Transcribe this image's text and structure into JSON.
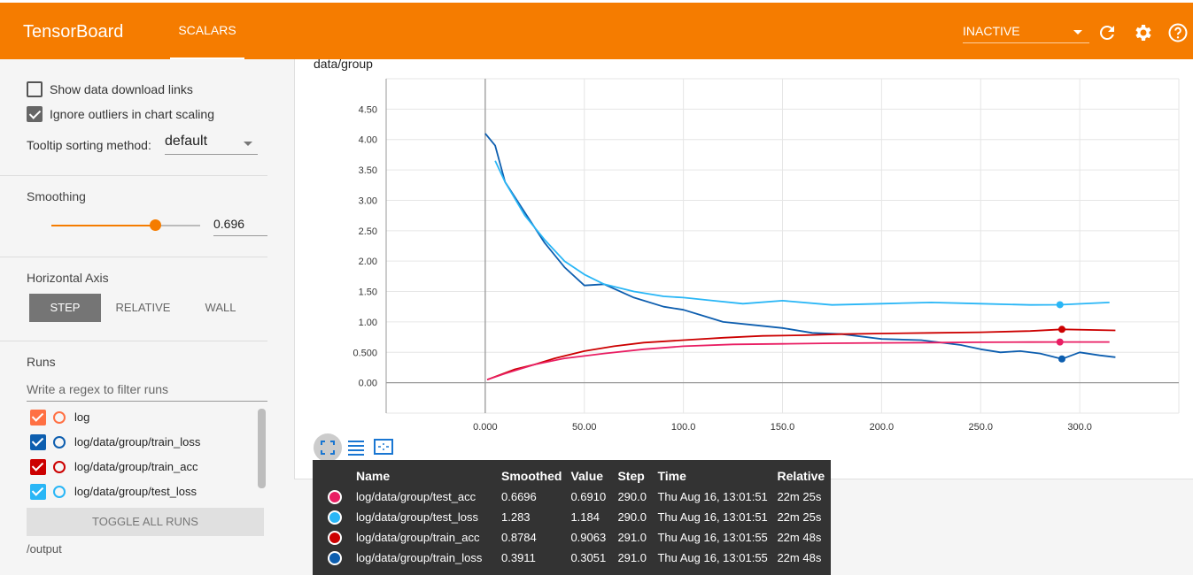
{
  "header": {
    "brand": "TensorBoard",
    "tab": "SCALARS",
    "status": "INACTIVE"
  },
  "sidebar": {
    "show_download": "Show data download links",
    "ignore_outliers": "Ignore outliers in chart scaling",
    "tooltip_sort_label": "Tooltip sorting method:",
    "tooltip_sort_value": "default",
    "smoothing_title": "Smoothing",
    "smoothing_value": "0.696",
    "smoothing_fraction": 0.696,
    "horizontal_axis_title": "Horizontal Axis",
    "axis_options": [
      "STEP",
      "RELATIVE",
      "WALL"
    ],
    "runs_title": "Runs",
    "filter_placeholder": "Write a regex to filter runs",
    "runs": [
      {
        "name": "log",
        "color": "#ff7043"
      },
      {
        "name": "log/data/group/train_loss",
        "color": "#0d5eaf"
      },
      {
        "name": "log/data/group/train_acc",
        "color": "#cc0000"
      },
      {
        "name": "log/data/group/test_loss",
        "color": "#29b6f6"
      }
    ],
    "toggle_all": "TOGGLE ALL RUNS",
    "output": "/output"
  },
  "chart_title": "data/group",
  "chart_data": {
    "type": "line",
    "xlabel": "",
    "ylabel": "",
    "xlim": [
      -50,
      350
    ],
    "ylim": [
      -0.5,
      5.0
    ],
    "x_ticks": [
      "0.000",
      "50.00",
      "100.0",
      "150.0",
      "200.0",
      "250.0",
      "300.0"
    ],
    "y_ticks": [
      "0.00",
      "0.500",
      "1.00",
      "1.50",
      "2.00",
      "2.50",
      "3.00",
      "3.50",
      "4.00",
      "4.50"
    ],
    "grid": true,
    "series": [
      {
        "name": "log/data/group/train_loss",
        "color": "#0d5eaf",
        "x": [
          0,
          5,
          10,
          20,
          30,
          40,
          50,
          60,
          75,
          90,
          100,
          110,
          120,
          135,
          150,
          165,
          180,
          200,
          220,
          240,
          250,
          260,
          270,
          280,
          291,
          300,
          310,
          318
        ],
        "y": [
          4.1,
          3.9,
          3.3,
          2.8,
          2.3,
          1.9,
          1.6,
          1.62,
          1.4,
          1.25,
          1.2,
          1.1,
          1.0,
          0.95,
          0.9,
          0.82,
          0.8,
          0.72,
          0.7,
          0.62,
          0.55,
          0.5,
          0.52,
          0.48,
          0.3911,
          0.5,
          0.45,
          0.42
        ]
      },
      {
        "name": "log/data/group/test_loss",
        "color": "#29b6f6",
        "x": [
          5,
          10,
          20,
          30,
          40,
          50,
          60,
          75,
          90,
          100,
          115,
          130,
          150,
          175,
          200,
          225,
          250,
          275,
          290,
          315
        ],
        "y": [
          3.65,
          3.3,
          2.75,
          2.35,
          2.0,
          1.78,
          1.62,
          1.5,
          1.42,
          1.4,
          1.35,
          1.3,
          1.35,
          1.28,
          1.3,
          1.32,
          1.3,
          1.28,
          1.283,
          1.32
        ]
      },
      {
        "name": "log/data/group/train_acc",
        "color": "#cc0000",
        "x": [
          1,
          5,
          15,
          25,
          35,
          50,
          65,
          80,
          100,
          120,
          140,
          160,
          180,
          200,
          225,
          250,
          275,
          291,
          318
        ],
        "y": [
          0.05,
          0.1,
          0.22,
          0.3,
          0.4,
          0.52,
          0.6,
          0.66,
          0.7,
          0.74,
          0.77,
          0.78,
          0.8,
          0.81,
          0.82,
          0.83,
          0.85,
          0.8784,
          0.86
        ]
      },
      {
        "name": "log/data/group/test_acc",
        "color": "#e91e63",
        "x": [
          1,
          10,
          25,
          40,
          60,
          80,
          100,
          125,
          150,
          175,
          200,
          225,
          250,
          275,
          290,
          315
        ],
        "y": [
          0.05,
          0.15,
          0.3,
          0.4,
          0.48,
          0.55,
          0.6,
          0.63,
          0.64,
          0.65,
          0.655,
          0.66,
          0.665,
          0.668,
          0.6696,
          0.67
        ]
      }
    ]
  },
  "tooltip": {
    "headers": [
      "Name",
      "Smoothed",
      "Value",
      "Step",
      "Time",
      "Relative"
    ],
    "rows": [
      {
        "color": "#e91e63",
        "name": "log/data/group/test_acc",
        "smoothed": "0.6696",
        "value": "0.6910",
        "step": "290.0",
        "time": "Thu Aug 16, 13:01:51",
        "relative": "22m 25s"
      },
      {
        "color": "#29b6f6",
        "name": "log/data/group/test_loss",
        "smoothed": "1.283",
        "value": "1.184",
        "step": "290.0",
        "time": "Thu Aug 16, 13:01:51",
        "relative": "22m 25s"
      },
      {
        "color": "#cc0000",
        "name": "log/data/group/train_acc",
        "smoothed": "0.8784",
        "value": "0.9063",
        "step": "291.0",
        "time": "Thu Aug 16, 13:01:55",
        "relative": "22m 48s"
      },
      {
        "color": "#0d5eaf",
        "name": "log/data/group/train_loss",
        "smoothed": "0.3911",
        "value": "0.3051",
        "step": "291.0",
        "time": "Thu Aug 16, 13:01:55",
        "relative": "22m 48s"
      }
    ]
  }
}
